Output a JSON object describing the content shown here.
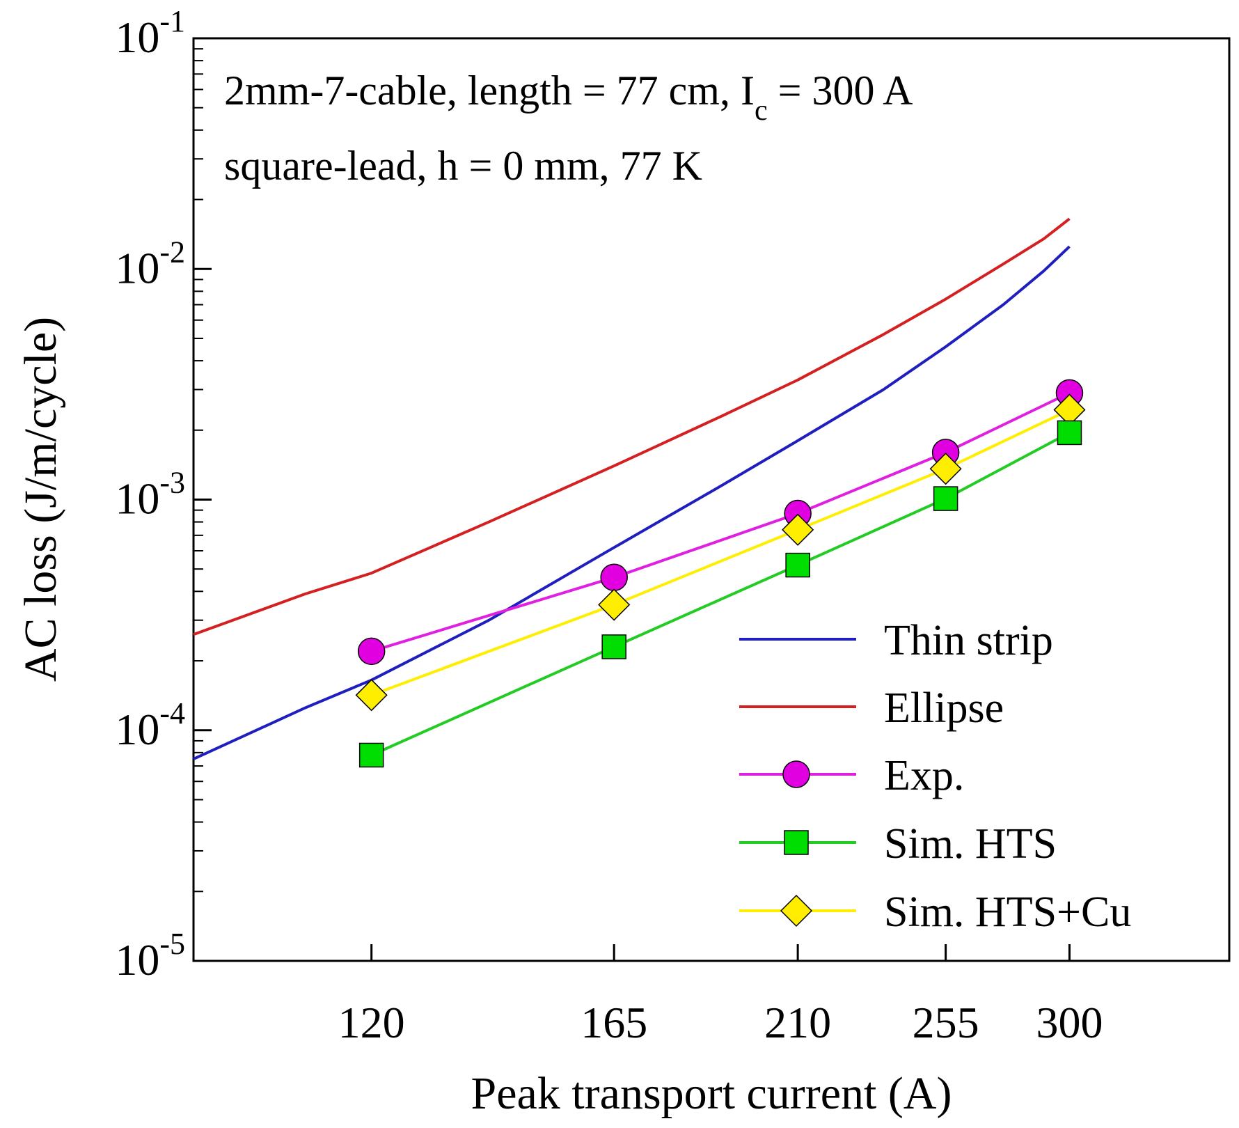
{
  "chart_data": {
    "type": "line",
    "title": "",
    "xlabel": "Peak transport current (A)",
    "ylabel": "AC loss (J/m/cycle)",
    "x_scale": "log",
    "y_scale": "log",
    "xlim": [
      95,
      370
    ],
    "ylim": [
      1e-05,
      0.1
    ],
    "x_ticks": [
      120,
      165,
      210,
      255,
      300
    ],
    "x_tick_labels": [
      "120",
      "165",
      "210",
      "255",
      "300"
    ],
    "y_ticks": [
      {
        "value": 0.1,
        "base": "10",
        "exp": "-1"
      },
      {
        "value": 0.01,
        "base": "10",
        "exp": "-2"
      },
      {
        "value": 0.001,
        "base": "10",
        "exp": "-3"
      },
      {
        "value": 0.0001,
        "base": "10",
        "exp": "-4"
      },
      {
        "value": 1e-05,
        "base": "10",
        "exp": "-5"
      }
    ],
    "grid": false,
    "annotations": {
      "line1_prefix": "2mm-7-cable, length = 77 cm, I",
      "line1_sub": "c",
      "line1_suffix": " = 300 A",
      "line2": "square-lead, h = 0 mm, 77 K"
    },
    "legend_position": "bottom-right",
    "series": [
      {
        "name": "Thin strip",
        "color": "#1f1fbf",
        "marker": "none",
        "x": [
          95,
          110,
          120,
          140,
          165,
          190,
          210,
          235,
          255,
          275,
          290,
          300
        ],
        "y": [
          7.5e-05,
          0.000125,
          0.000165,
          0.0003,
          0.00062,
          0.00115,
          0.0018,
          0.003,
          0.0046,
          0.007,
          0.0098,
          0.0125
        ]
      },
      {
        "name": "Ellipse",
        "color": "#d42020",
        "marker": "none",
        "x": [
          95,
          110,
          120,
          140,
          165,
          190,
          210,
          235,
          255,
          275,
          290,
          300
        ],
        "y": [
          0.00026,
          0.00039,
          0.00048,
          0.0008,
          0.0014,
          0.0023,
          0.0033,
          0.0052,
          0.0074,
          0.0105,
          0.0135,
          0.0165
        ]
      },
      {
        "name": "Exp.",
        "color": "#e020e0",
        "line_color": "#e020e0",
        "marker": "circle",
        "marker_fill": "#e000e0",
        "x": [
          120,
          165,
          210,
          255,
          300
        ],
        "y": [
          0.00022,
          0.00046,
          0.00087,
          0.0016,
          0.0029
        ]
      },
      {
        "name": "Sim. HTS",
        "color": "#22cc22",
        "line_color": "#22cc22",
        "marker": "square",
        "marker_fill": "#00dd00",
        "x": [
          120,
          165,
          210,
          255,
          300
        ],
        "y": [
          7.8e-05,
          0.00023,
          0.00052,
          0.00101,
          0.00195
        ]
      },
      {
        "name": "Sim. HTS+Cu",
        "color": "#ffee00",
        "line_color": "#ffee00",
        "marker": "diamond",
        "marker_fill": "#ffee00",
        "x": [
          120,
          165,
          210,
          255,
          300
        ],
        "y": [
          0.000142,
          0.00035,
          0.00074,
          0.00136,
          0.00245
        ]
      }
    ]
  }
}
